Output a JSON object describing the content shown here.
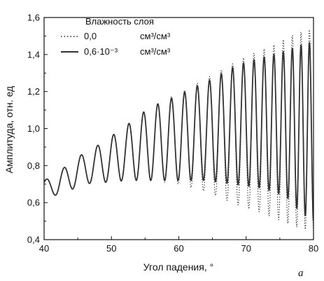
{
  "chart_data": {
    "type": "line",
    "xlabel": "Угол падения, °",
    "ylabel": "Амплитуда, отн. ед",
    "xlim": [
      40,
      80
    ],
    "ylim": [
      0.4,
      1.6
    ],
    "xticks": [
      "40",
      "50",
      "60",
      "70",
      "80"
    ],
    "yticks": [
      "0,4",
      "0,6",
      "0,8",
      "1,0",
      "1,2",
      "1,4",
      "1,6"
    ],
    "legend": {
      "title": "Влажность слоя",
      "placement": "top-left"
    },
    "panel_label": "a",
    "series": [
      {
        "name": "0,0",
        "unit": "см³/см³",
        "style": "dotted",
        "color": "#222222",
        "x": [
          40,
          42,
          44,
          46,
          48,
          50,
          52,
          54,
          56,
          58,
          60,
          62,
          64,
          66,
          68,
          70,
          72,
          74,
          76,
          78,
          80
        ],
        "upper": [
          0.72,
          0.76,
          0.82,
          0.87,
          0.91,
          0.96,
          1.01,
          1.07,
          1.12,
          1.16,
          1.19,
          1.23,
          1.27,
          1.31,
          1.35,
          1.39,
          1.42,
          1.45,
          1.49,
          1.52,
          1.54
        ],
        "lower": [
          0.64,
          0.64,
          0.67,
          0.7,
          0.71,
          0.71,
          0.72,
          0.72,
          0.72,
          0.71,
          0.7,
          0.68,
          0.66,
          0.63,
          0.6,
          0.57,
          0.55,
          0.52,
          0.49,
          0.46,
          0.45
        ]
      },
      {
        "name": "0,6·10⁻³",
        "unit": "см³/см³",
        "style": "solid",
        "color": "#333333",
        "x": [
          40,
          42,
          44,
          46,
          48,
          50,
          52,
          54,
          56,
          58,
          60,
          62,
          64,
          66,
          68,
          70,
          72,
          74,
          76,
          78,
          80
        ],
        "upper": [
          0.72,
          0.76,
          0.82,
          0.87,
          0.91,
          0.96,
          1.01,
          1.07,
          1.12,
          1.15,
          1.18,
          1.22,
          1.25,
          1.29,
          1.33,
          1.36,
          1.38,
          1.4,
          1.42,
          1.45,
          1.47
        ],
        "lower": [
          0.64,
          0.64,
          0.67,
          0.7,
          0.71,
          0.71,
          0.72,
          0.72,
          0.72,
          0.72,
          0.72,
          0.72,
          0.72,
          0.71,
          0.7,
          0.69,
          0.68,
          0.66,
          0.63,
          0.55,
          0.5
        ]
      }
    ],
    "oscillation": {
      "start_period_deg": 2.7,
      "end_period_deg": 1.2
    }
  }
}
